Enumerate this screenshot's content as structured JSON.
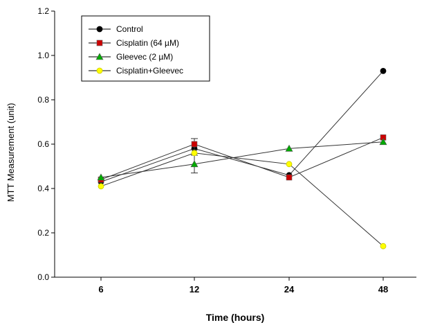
{
  "chart_data": {
    "type": "line",
    "xlabel": "Time (hours)",
    "ylabel": "MTT Measurement (unit)",
    "categories": [
      "6",
      "12",
      "24",
      "48"
    ],
    "ylim": [
      0,
      1.2
    ],
    "yticks": [
      "0.0",
      "0.2",
      "0.4",
      "0.6",
      "0.8",
      "1.0",
      "1.2"
    ],
    "grid": false,
    "legend_position": "top-left",
    "series": [
      {
        "name": "Control",
        "values": [
          0.43,
          0.58,
          0.46,
          0.93
        ],
        "errors": [
          0,
          0,
          0,
          0
        ],
        "color": "#000000",
        "marker": "circle"
      },
      {
        "name": "Cisplatin (64 µM)",
        "values": [
          0.44,
          0.6,
          0.45,
          0.63
        ],
        "errors": [
          0,
          0.025,
          0,
          0
        ],
        "color": "#cc0000",
        "marker": "square"
      },
      {
        "name": "Gleevec (2 µM)",
        "values": [
          0.45,
          0.51,
          0.58,
          0.61
        ],
        "errors": [
          0,
          0.04,
          0,
          0
        ],
        "color": "#00aa00",
        "marker": "triangle"
      },
      {
        "name": "Cisplatin+Gleevec",
        "values": [
          0.41,
          0.56,
          0.51,
          0.14
        ],
        "errors": [
          0,
          0,
          0,
          0
        ],
        "color": "#ffff00",
        "marker": "circle"
      }
    ]
  }
}
